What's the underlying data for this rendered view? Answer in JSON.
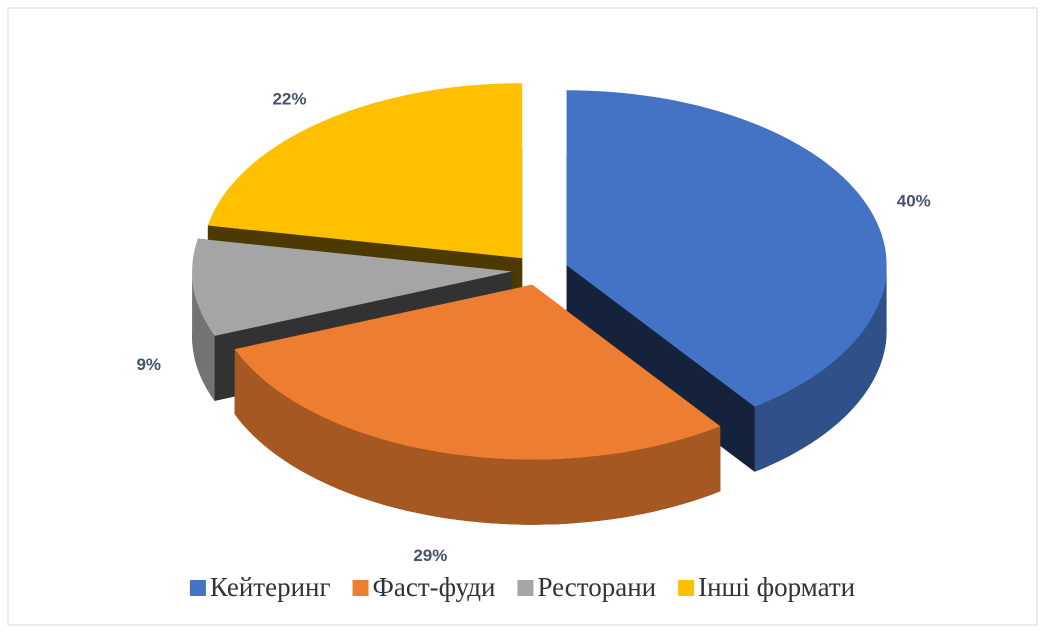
{
  "chart_data": {
    "type": "pie",
    "categories": [
      "Кейтеринг",
      "Фаст-фуди",
      "Ресторани",
      "Інші формати"
    ],
    "values": [
      40,
      29,
      9,
      22
    ],
    "value_labels": [
      "40%",
      "29%",
      "9%",
      "22%"
    ],
    "colors": [
      "#4472c4",
      "#ed7d31",
      "#a5a5a5",
      "#ffc000"
    ],
    "legend": "bottom"
  }
}
